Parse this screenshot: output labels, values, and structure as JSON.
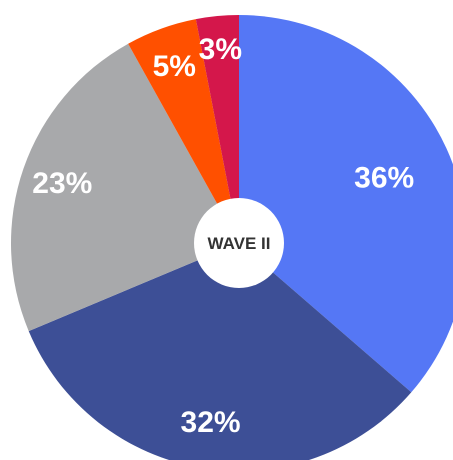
{
  "chart_data": {
    "type": "pie",
    "center_label": "WAVE II",
    "slices": [
      {
        "value": 36,
        "label": "36%",
        "color": "#5577f5"
      },
      {
        "value": 32,
        "label": "32%",
        "color": "#3d4f96"
      },
      {
        "value": 23,
        "label": "23%",
        "color": "#a8a9ab"
      },
      {
        "value": 5,
        "label": "5%",
        "color": "#ff5000"
      },
      {
        "value": 3,
        "label": "3%",
        "color": "#d4174b"
      }
    ],
    "start_angle_deg": 0,
    "direction": "clockwise",
    "legend": "none"
  }
}
